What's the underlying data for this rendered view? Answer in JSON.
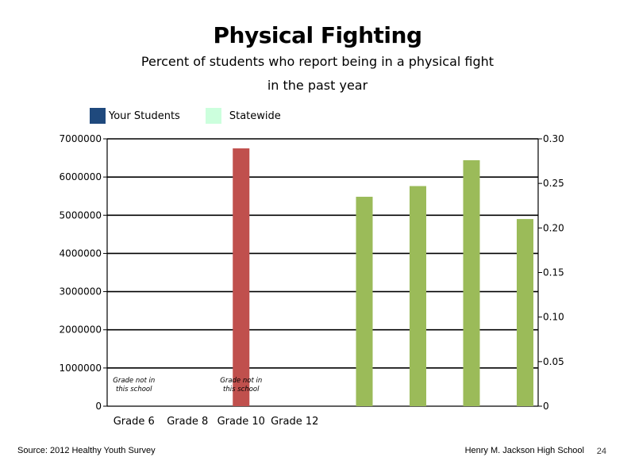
{
  "page": {
    "source": "Source: 2012 Healthy Youth Survey",
    "school": "Henry M. Jackson High School",
    "page_number": "24"
  },
  "chart_data": {
    "type": "bar",
    "title": "Physical Fighting",
    "subtitle_line1": "Percent of students who report being in a physical fight",
    "subtitle_line2": "in the past year",
    "legend": [
      {
        "name": "Your Students",
        "color": "#1f497d"
      },
      {
        "name": "Statewide",
        "color": "#ccffdd"
      }
    ],
    "legend_placement": "top-left",
    "categories": [
      "Grade 6",
      "Grade 8",
      "Grade 10",
      "Grade 12"
    ],
    "grid": true,
    "primary_axis": {
      "side": "left",
      "ylim": [
        0,
        7000000
      ],
      "ticks": [
        "0",
        "1000000",
        "2000000",
        "3000000",
        "4000000",
        "5000000",
        "6000000",
        "7000000"
      ]
    },
    "secondary_axis": {
      "side": "right",
      "ylim": [
        0,
        0.3
      ],
      "ticks": [
        "0",
        "0.05",
        "0.10",
        "0.15",
        "0.20",
        "0.25",
        "0.30"
      ]
    },
    "series": [
      {
        "axis": "primary",
        "color": "#c0504d",
        "points": [
          {
            "slot": 2.5,
            "value": 6750000
          }
        ]
      },
      {
        "axis": "secondary",
        "color": "#9bbb59",
        "points": [
          {
            "slot": 4.8,
            "value": 0.235
          },
          {
            "slot": 5.8,
            "value": 0.247
          },
          {
            "slot": 6.8,
            "value": 0.276
          },
          {
            "slot": 7.8,
            "value": 0.21
          }
        ]
      }
    ],
    "annotations": [
      {
        "slot": 0.5,
        "line1": "Grade not in",
        "line2": "this school"
      },
      {
        "slot": 2.5,
        "line1": "Grade not in",
        "line2": "this school"
      }
    ]
  }
}
